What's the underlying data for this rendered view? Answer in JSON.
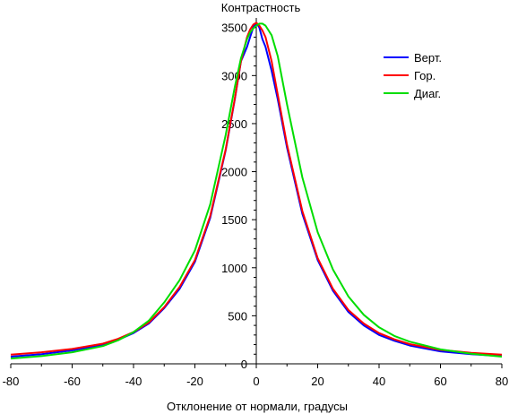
{
  "chart_data": {
    "type": "line",
    "title": "",
    "xlabel": "Отклонение от нормали, градусы",
    "ylabel": "Контрастность",
    "xlim": [
      -80,
      80
    ],
    "ylim": [
      0,
      3600
    ],
    "xticks": [
      -80,
      -60,
      -40,
      -20,
      0,
      20,
      40,
      60,
      80
    ],
    "xtick_labels": [
      "-80",
      "-60",
      "-40",
      "-20",
      "0",
      "20",
      "40",
      "60",
      "80"
    ],
    "yticks": [
      0,
      500,
      1000,
      1500,
      2000,
      2500,
      3000,
      3500
    ],
    "ytick_labels": [
      "0",
      "500",
      "1000",
      "1500",
      "2000",
      "2500",
      "3000",
      "3500"
    ],
    "grid": false,
    "legend_position": "top-right",
    "series": [
      {
        "name": "Верт.",
        "color": "#0000ff",
        "x": [
          -80,
          -70,
          -60,
          -50,
          -45,
          -40,
          -35,
          -30,
          -25,
          -20,
          -15,
          -10,
          -7,
          -5,
          -3,
          -2,
          -1,
          0,
          1,
          2,
          3,
          5,
          7,
          10,
          15,
          20,
          25,
          30,
          35,
          40,
          45,
          50,
          60,
          70,
          80
        ],
        "y": [
          75,
          100,
          140,
          200,
          250,
          320,
          420,
          580,
          780,
          1060,
          1520,
          2220,
          2750,
          3150,
          3300,
          3400,
          3500,
          3550,
          3500,
          3380,
          3300,
          3050,
          2750,
          2250,
          1560,
          1080,
          760,
          540,
          400,
          300,
          240,
          190,
          130,
          100,
          80
        ]
      },
      {
        "name": "Гор.",
        "color": "#ff0000",
        "x": [
          -80,
          -70,
          -60,
          -50,
          -45,
          -40,
          -35,
          -30,
          -25,
          -20,
          -15,
          -10,
          -7,
          -5,
          -3,
          -2,
          -1,
          0,
          1,
          2,
          3,
          5,
          7,
          10,
          15,
          20,
          25,
          30,
          35,
          40,
          45,
          50,
          60,
          70,
          80
        ],
        "y": [
          95,
          120,
          155,
          210,
          260,
          330,
          430,
          590,
          800,
          1080,
          1540,
          2230,
          2760,
          3150,
          3400,
          3480,
          3530,
          3550,
          3520,
          3470,
          3400,
          3150,
          2800,
          2280,
          1590,
          1100,
          780,
          560,
          420,
          320,
          255,
          205,
          145,
          115,
          95
        ]
      },
      {
        "name": "Диаг.",
        "color": "#00dd00",
        "x": [
          -80,
          -70,
          -60,
          -50,
          -45,
          -40,
          -35,
          -30,
          -25,
          -20,
          -15,
          -10,
          -7,
          -5,
          -3,
          -2,
          -1,
          0,
          1,
          2,
          3,
          5,
          7,
          10,
          15,
          20,
          25,
          30,
          35,
          40,
          45,
          50,
          60,
          70,
          80
        ],
        "y": [
          55,
          80,
          120,
          185,
          245,
          330,
          450,
          640,
          870,
          1180,
          1660,
          2380,
          2880,
          3180,
          3380,
          3450,
          3490,
          3520,
          3540,
          3540,
          3520,
          3420,
          3200,
          2700,
          1940,
          1370,
          980,
          700,
          510,
          380,
          290,
          230,
          150,
          105,
          75
        ]
      }
    ]
  }
}
